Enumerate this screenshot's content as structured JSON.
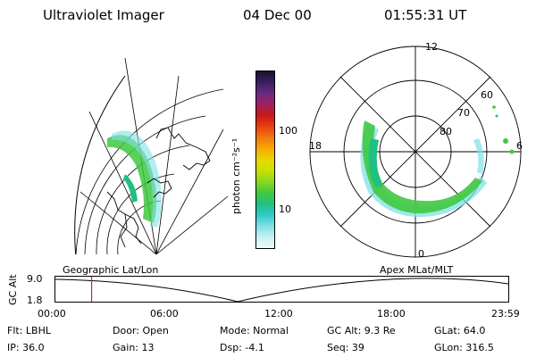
{
  "header": {
    "instrument": "Ultraviolet Imager",
    "date": "04 Dec 00",
    "time": "01:55:31 UT"
  },
  "geo_panel": {
    "label": "Geographic Lat/Lon"
  },
  "polar_panel": {
    "label": "Apex MLat/MLT",
    "mlt_labels": [
      "12",
      "18",
      "6",
      "0"
    ],
    "lat_labels": [
      "60",
      "70",
      "80"
    ]
  },
  "colorbar": {
    "unit_label": "photon cm⁻²s⁻¹",
    "tick_labels": [
      "100",
      "10"
    ],
    "colors": [
      "#1a1030",
      "#3a2060",
      "#6b2a80",
      "#a02060",
      "#c81818",
      "#e84010",
      "#f07810",
      "#f8a800",
      "#e8d800",
      "#c8e000",
      "#88d820",
      "#40c840",
      "#20c080",
      "#30c8c8",
      "#80e0e8",
      "#c8f0f4",
      "#eefafc"
    ]
  },
  "altitude_plot": {
    "ylabel": "GC Alt",
    "yticks": [
      "9.0",
      "1.8"
    ],
    "xticks": [
      "00:00",
      "06:00",
      "12:00",
      "18:00",
      "23:59"
    ],
    "current_time_fraction": 0.08
  },
  "footer": {
    "flt": "Flt: LBHL",
    "door": "Door: Open",
    "mode": "Mode: Normal",
    "gc_alt": "GC Alt: 9.3 Re",
    "glat": "GLat:  64.0",
    "ip": "IP: 36.0",
    "gain": "Gain: 13",
    "dsp": "Dsp:   -4.1",
    "seq": "Seq: 39",
    "glon": "GLon: 316.5"
  }
}
